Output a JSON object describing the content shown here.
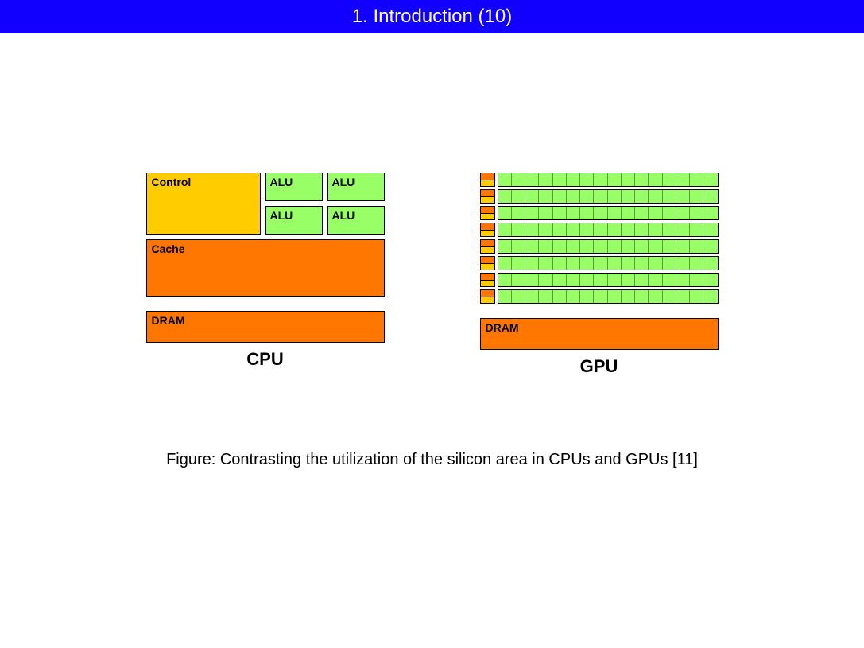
{
  "header": {
    "title": "1. Introduction (10)",
    "bg_color": "#1200ff",
    "text_color": "#ffffff"
  },
  "diagram": {
    "cpu": {
      "control_label": "Control",
      "control_color": "#ffcc00",
      "alu_label": "ALU",
      "alu_color": "#99ff66",
      "alu_count": 4,
      "cache_label": "Cache",
      "cache_color": "#ff7700",
      "dram_label": "DRAM",
      "dram_color": "#ff7700",
      "title": "CPU"
    },
    "gpu": {
      "rows": 8,
      "cores_per_row": 16,
      "ctrl_top_color": "#ff7700",
      "ctrl_bot_color": "#ffcc00",
      "core_color": "#99ff66",
      "dram_label": "DRAM",
      "dram_color": "#ff7700",
      "title": "GPU"
    }
  },
  "caption": "Figure: Contrasting the utilization of the silicon area in CPUs and GPUs [11]",
  "colors": {
    "border": "#000000",
    "text": "#000000"
  }
}
